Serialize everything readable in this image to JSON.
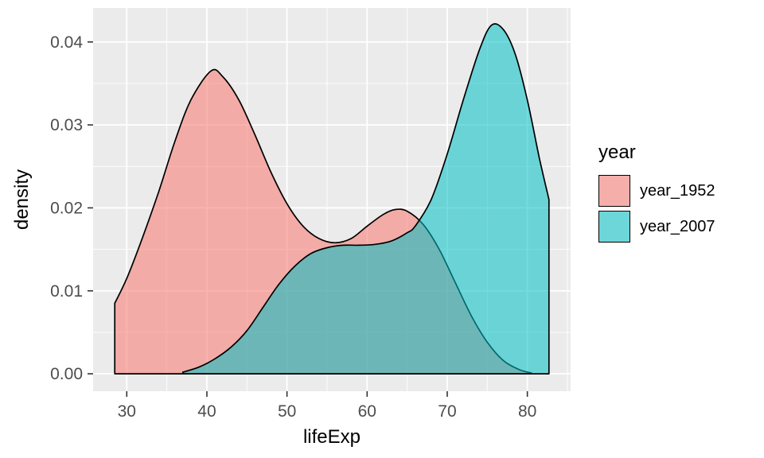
{
  "figure": {
    "background": "#FFFFFF"
  },
  "chart_data": {
    "type": "area",
    "subtype": "density",
    "title": "",
    "xlabel": "lifeExp",
    "ylabel": "density",
    "xlim": [
      25.8,
      85.4
    ],
    "ylim": [
      -0.0021,
      0.0441
    ],
    "x_ticks": {
      "values": [
        30,
        40,
        50,
        60,
        70,
        80
      ],
      "labels": [
        "30",
        "40",
        "50",
        "60",
        "70",
        "80"
      ]
    },
    "y_ticks": {
      "values": [
        0.0,
        0.01,
        0.02,
        0.03,
        0.04
      ],
      "labels": [
        "0.00",
        "0.01",
        "0.02",
        "0.03",
        "0.04"
      ]
    },
    "x_minor_ticks": [
      35,
      45,
      55,
      65,
      75,
      85
    ],
    "y_minor_ticks": [
      0.005,
      0.015,
      0.025,
      0.035
    ],
    "grid": true,
    "panel_background": "#EBEBEB",
    "grid_color": "#FFFFFF",
    "axis_text_color": "#4D4D4D",
    "tick_color": "#333333",
    "stroke_color": "#000000",
    "fill_opacity": 0.55,
    "series": [
      {
        "name": "year_1952",
        "fill": "#F8766D",
        "points": [
          [
            28.5,
            0.0085
          ],
          [
            30,
            0.0115
          ],
          [
            32,
            0.0165
          ],
          [
            34,
            0.022
          ],
          [
            36,
            0.028
          ],
          [
            38,
            0.033
          ],
          [
            40.5,
            0.0365
          ],
          [
            42,
            0.0358
          ],
          [
            44,
            0.033
          ],
          [
            46,
            0.0288
          ],
          [
            48,
            0.0243
          ],
          [
            50,
            0.0205
          ],
          [
            52,
            0.0178
          ],
          [
            54,
            0.0163
          ],
          [
            56,
            0.0158
          ],
          [
            58,
            0.0163
          ],
          [
            60,
            0.0178
          ],
          [
            62,
            0.0192
          ],
          [
            63.5,
            0.0198
          ],
          [
            65,
            0.0196
          ],
          [
            67,
            0.018
          ],
          [
            69,
            0.015
          ],
          [
            71,
            0.011
          ],
          [
            73,
            0.007
          ],
          [
            75,
            0.0038
          ],
          [
            77,
            0.0016
          ],
          [
            79,
            0.0005
          ],
          [
            80.5,
            0.0001
          ]
        ]
      },
      {
        "name": "year_2007",
        "fill": "#00BFC4",
        "points": [
          [
            37,
            0.0002
          ],
          [
            39,
            0.0008
          ],
          [
            41,
            0.0018
          ],
          [
            43,
            0.0032
          ],
          [
            45,
            0.0052
          ],
          [
            47,
            0.008
          ],
          [
            49,
            0.0108
          ],
          [
            51,
            0.013
          ],
          [
            53,
            0.0145
          ],
          [
            55,
            0.0152
          ],
          [
            57,
            0.0155
          ],
          [
            59,
            0.0155
          ],
          [
            61,
            0.0156
          ],
          [
            63,
            0.016
          ],
          [
            65,
            0.017
          ],
          [
            66,
            0.0178
          ],
          [
            68,
            0.021
          ],
          [
            70,
            0.0265
          ],
          [
            72,
            0.033
          ],
          [
            74,
            0.039
          ],
          [
            75.5,
            0.042
          ],
          [
            77,
            0.0415
          ],
          [
            78.5,
            0.0385
          ],
          [
            80,
            0.033
          ],
          [
            81.5,
            0.026
          ],
          [
            82.7,
            0.021
          ]
        ]
      }
    ],
    "legend": {
      "title": "year",
      "position": "right",
      "key_background": "#F2F2F2",
      "items": [
        {
          "label": "year_1952",
          "fill": "#F8766D"
        },
        {
          "label": "year_2007",
          "fill": "#00BFC4"
        }
      ]
    }
  }
}
